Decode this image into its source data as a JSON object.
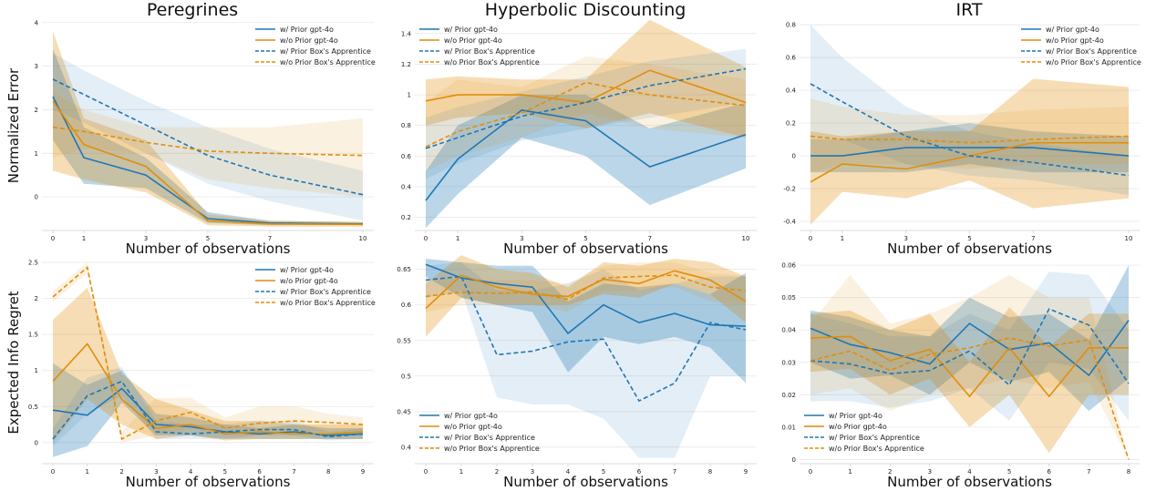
{
  "figure": {
    "column_titles": [
      "Peregrines",
      "Hyperbolic Discounting",
      "IRT"
    ],
    "row_labels": [
      "Normalized Error",
      "Expected Info Regret"
    ],
    "x_label": "Number of observations"
  },
  "colors": {
    "blue": "#1f77b4",
    "orange": "#e08e0b"
  },
  "chart_data": [
    {
      "type": "line",
      "row": 0,
      "col": 0,
      "title": "Peregrines",
      "xlabel": "Number of observations",
      "ylabel": "Normalized Error",
      "x": [
        0,
        1,
        3,
        5,
        7,
        10
      ],
      "xticks": [
        0,
        1,
        3,
        5,
        7,
        10
      ],
      "ylim": [
        -0.75,
        4.1
      ],
      "yticks": [
        0,
        1,
        2,
        3,
        4
      ],
      "grid": true,
      "legend": "top-right",
      "series": [
        {
          "name": "w/ Prior gpt-4o",
          "color": "#1f77b4",
          "dash": false,
          "values": [
            2.3,
            0.9,
            0.5,
            -0.5,
            -0.6,
            -0.62
          ],
          "band_low": [
            1.3,
            0.3,
            0.2,
            -0.6,
            -0.65,
            -0.65
          ],
          "band_high": [
            3.4,
            1.6,
            0.9,
            -0.35,
            -0.55,
            -0.58
          ]
        },
        {
          "name": "w/o Prior gpt-4o",
          "color": "#e08e0b",
          "dash": false,
          "values": [
            2.2,
            1.2,
            0.7,
            -0.55,
            -0.62,
            -0.63
          ],
          "band_low": [
            0.6,
            0.4,
            0.1,
            -0.65,
            -0.68,
            -0.68
          ],
          "band_high": [
            3.8,
            1.8,
            1.3,
            -0.4,
            -0.55,
            -0.57
          ]
        },
        {
          "name": "w/ Prior Box's Apprentice",
          "color": "#1f77b4",
          "dash": true,
          "values": [
            2.7,
            2.35,
            1.65,
            0.95,
            0.5,
            0.05
          ],
          "band_low": [
            2.0,
            1.7,
            1.0,
            0.3,
            -0.1,
            -0.55
          ],
          "band_high": [
            3.3,
            2.9,
            2.2,
            1.6,
            1.1,
            0.6
          ]
        },
        {
          "name": "w/o Prior Box's Apprentice",
          "color": "#e08e0b",
          "dash": true,
          "values": [
            1.6,
            1.5,
            1.25,
            1.05,
            1.0,
            0.95
          ],
          "band_low": [
            0.9,
            1.1,
            1.0,
            0.4,
            0.2,
            0.0
          ],
          "band_high": [
            2.4,
            2.0,
            1.6,
            1.6,
            1.6,
            1.8
          ]
        }
      ]
    },
    {
      "type": "line",
      "row": 0,
      "col": 1,
      "title": "Hyperbolic Discounting",
      "xlabel": "Number of observations",
      "ylabel": "",
      "x": [
        0,
        1,
        3,
        5,
        7,
        10
      ],
      "xticks": [
        0,
        1,
        3,
        5,
        7,
        10
      ],
      "ylim": [
        0.12,
        1.5
      ],
      "yticks": [
        0.2,
        0.4,
        0.6,
        0.8,
        1.0,
        1.2,
        1.4
      ],
      "grid": true,
      "legend": "top-left",
      "series": [
        {
          "name": "w/ Prior gpt-4o",
          "color": "#1f77b4",
          "dash": false,
          "values": [
            0.31,
            0.58,
            0.9,
            0.83,
            0.53,
            0.74
          ],
          "band_low": [
            0.13,
            0.35,
            0.72,
            0.6,
            0.28,
            0.52
          ],
          "band_high": [
            0.5,
            0.8,
            1.0,
            1.0,
            0.78,
            0.95
          ]
        },
        {
          "name": "w/o Prior gpt-4o",
          "color": "#e08e0b",
          "dash": false,
          "values": [
            0.96,
            1.0,
            1.0,
            0.95,
            1.16,
            0.95
          ],
          "band_low": [
            0.8,
            0.85,
            0.88,
            0.78,
            0.88,
            0.72
          ],
          "band_high": [
            1.1,
            1.12,
            1.1,
            1.1,
            1.49,
            1.18
          ]
        },
        {
          "name": "w/ Prior Box's Apprentice",
          "color": "#1f77b4",
          "dash": true,
          "values": [
            0.65,
            0.72,
            0.86,
            0.95,
            1.06,
            1.17
          ],
          "band_low": [
            0.45,
            0.55,
            0.7,
            0.78,
            0.85,
            0.95
          ],
          "band_high": [
            0.85,
            0.92,
            1.02,
            1.12,
            1.22,
            1.3
          ]
        },
        {
          "name": "w/o Prior Box's Apprentice",
          "color": "#e08e0b",
          "dash": true,
          "values": [
            0.66,
            0.76,
            0.88,
            1.08,
            1.0,
            0.93
          ],
          "band_low": [
            0.5,
            0.6,
            0.72,
            0.88,
            0.78,
            0.72
          ],
          "band_high": [
            0.95,
            1.1,
            1.05,
            1.25,
            1.2,
            1.1
          ]
        }
      ]
    },
    {
      "type": "line",
      "row": 0,
      "col": 2,
      "title": "IRT",
      "xlabel": "Number of observations",
      "ylabel": "",
      "x": [
        0,
        1,
        3,
        5,
        7,
        10
      ],
      "xticks": [
        0,
        1,
        3,
        5,
        7,
        10
      ],
      "ylim": [
        -0.45,
        0.84
      ],
      "yticks": [
        -0.4,
        -0.2,
        0.0,
        0.2,
        0.4,
        0.6,
        0.8
      ],
      "grid": true,
      "legend": "top-right",
      "series": [
        {
          "name": "w/ Prior gpt-4o",
          "color": "#1f77b4",
          "dash": false,
          "values": [
            0.0,
            0.0,
            0.05,
            0.05,
            0.05,
            0.0
          ],
          "band_low": [
            -0.1,
            -0.1,
            -0.1,
            -0.05,
            -0.1,
            -0.1
          ],
          "band_high": [
            0.1,
            0.1,
            0.15,
            0.2,
            0.15,
            0.12
          ]
        },
        {
          "name": "w/o Prior gpt-4o",
          "color": "#e08e0b",
          "dash": false,
          "values": [
            -0.16,
            -0.05,
            -0.08,
            0.0,
            0.08,
            0.08
          ],
          "band_low": [
            -0.42,
            -0.22,
            -0.26,
            -0.15,
            -0.32,
            -0.26
          ],
          "band_high": [
            0.15,
            0.12,
            0.15,
            0.15,
            0.47,
            0.42
          ]
        },
        {
          "name": "w/ Prior Box's Apprentice",
          "color": "#1f77b4",
          "dash": true,
          "values": [
            0.44,
            0.33,
            0.12,
            0.0,
            -0.04,
            -0.12
          ],
          "band_low": [
            0.1,
            0.1,
            -0.05,
            -0.12,
            -0.15,
            -0.24
          ],
          "band_high": [
            0.8,
            0.6,
            0.3,
            0.15,
            0.08,
            0.0
          ]
        },
        {
          "name": "w/o Prior Box's Apprentice",
          "color": "#e08e0b",
          "dash": true,
          "values": [
            0.12,
            0.1,
            0.1,
            0.08,
            0.1,
            0.12
          ],
          "band_low": [
            -0.1,
            -0.05,
            -0.05,
            -0.08,
            -0.05,
            -0.05
          ],
          "band_high": [
            0.35,
            0.3,
            0.25,
            0.25,
            0.28,
            0.3
          ]
        }
      ]
    },
    {
      "type": "line",
      "row": 1,
      "col": 0,
      "title": "",
      "xlabel": "Number of observations",
      "ylabel": "Expected Info Regret",
      "x": [
        0,
        1,
        2,
        3,
        4,
        5,
        6,
        7,
        8,
        9
      ],
      "xticks": [
        0,
        1,
        2,
        3,
        4,
        5,
        6,
        7,
        8,
        9
      ],
      "ylim": [
        -0.28,
        2.55
      ],
      "yticks": [
        0.0,
        0.5,
        1.0,
        1.5,
        2.0,
        2.5
      ],
      "grid": true,
      "legend": "top-right",
      "series": [
        {
          "name": "w/ Prior gpt-4o",
          "color": "#1f77b4",
          "dash": false,
          "values": [
            0.45,
            0.38,
            0.75,
            0.25,
            0.22,
            0.15,
            0.12,
            0.15,
            0.1,
            0.12
          ],
          "band_low": [
            -0.2,
            -0.05,
            0.55,
            0.1,
            0.1,
            0.05,
            0.05,
            0.05,
            0.05,
            0.05
          ],
          "band_high": [
            1.1,
            0.8,
            1.0,
            0.4,
            0.35,
            0.25,
            0.2,
            0.25,
            0.2,
            0.2
          ]
        },
        {
          "name": "w/o Prior gpt-4o",
          "color": "#e08e0b",
          "dash": false,
          "values": [
            0.85,
            1.37,
            0.6,
            0.2,
            0.25,
            0.12,
            0.15,
            0.12,
            0.12,
            0.15
          ],
          "band_low": [
            0.0,
            0.6,
            0.25,
            0.05,
            0.1,
            0.03,
            0.05,
            0.05,
            0.05,
            0.05
          ],
          "band_high": [
            1.7,
            2.15,
            0.95,
            0.6,
            0.45,
            0.3,
            0.3,
            0.25,
            0.25,
            0.25
          ]
        },
        {
          "name": "w/ Prior Box's Apprentice",
          "color": "#1f77b4",
          "dash": true,
          "values": [
            0.05,
            0.65,
            0.85,
            0.15,
            0.12,
            0.15,
            0.18,
            0.18,
            0.08,
            0.12
          ],
          "band_low": [
            -0.05,
            0.4,
            0.65,
            0.05,
            0.05,
            0.05,
            0.1,
            0.1,
            0.03,
            0.05
          ],
          "band_high": [
            0.2,
            0.9,
            1.05,
            0.3,
            0.25,
            0.25,
            0.3,
            0.3,
            0.15,
            0.2
          ]
        },
        {
          "name": "w/o Prior Box's Apprentice",
          "color": "#e08e0b",
          "dash": true,
          "values": [
            2.02,
            2.43,
            0.05,
            0.3,
            0.42,
            0.2,
            0.27,
            0.3,
            0.28,
            0.25
          ],
          "band_low": [
            1.95,
            2.35,
            0.0,
            0.1,
            0.2,
            0.1,
            0.1,
            0.15,
            0.15,
            0.15
          ],
          "band_high": [
            2.1,
            2.5,
            0.15,
            0.62,
            0.62,
            0.35,
            0.5,
            0.5,
            0.4,
            0.35
          ]
        }
      ]
    },
    {
      "type": "line",
      "row": 1,
      "col": 1,
      "title": "",
      "xlabel": "Number of observations",
      "ylabel": "",
      "x": [
        0,
        1,
        2,
        3,
        4,
        5,
        6,
        7,
        8,
        9
      ],
      "xticks": [
        0,
        1,
        2,
        3,
        4,
        5,
        6,
        7,
        8,
        9
      ],
      "ylim": [
        0.378,
        0.665
      ],
      "yticks": [
        0.4,
        0.45,
        0.5,
        0.55,
        0.6,
        0.65
      ],
      "grid": true,
      "legend": "bottom-left",
      "series": [
        {
          "name": "w/ Prior gpt-4o",
          "color": "#1f77b4",
          "dash": false,
          "values": [
            0.657,
            0.638,
            0.63,
            0.625,
            0.56,
            0.6,
            0.575,
            0.588,
            0.572,
            0.57
          ],
          "band_low": [
            0.64,
            0.61,
            0.6,
            0.59,
            0.505,
            0.555,
            0.545,
            0.555,
            0.54,
            0.49
          ],
          "band_high": [
            0.665,
            0.66,
            0.655,
            0.655,
            0.605,
            0.63,
            0.625,
            0.63,
            0.615,
            0.645
          ]
        },
        {
          "name": "w/o Prior gpt-4o",
          "color": "#e08e0b",
          "dash": false,
          "values": [
            0.595,
            0.642,
            0.625,
            0.615,
            0.612,
            0.636,
            0.63,
            0.648,
            0.635,
            0.605
          ],
          "band_low": [
            0.555,
            0.61,
            0.6,
            0.6,
            0.6,
            0.615,
            0.61,
            0.63,
            0.615,
            0.575
          ],
          "band_high": [
            0.63,
            0.67,
            0.65,
            0.645,
            0.625,
            0.66,
            0.655,
            0.665,
            0.66,
            0.64
          ]
        },
        {
          "name": "w/ Prior Box's Apprentice",
          "color": "#1f77b4",
          "dash": true,
          "values": [
            0.635,
            0.64,
            0.53,
            0.535,
            0.548,
            0.552,
            0.465,
            0.49,
            0.575,
            0.565
          ],
          "band_low": [
            0.61,
            0.62,
            0.47,
            0.46,
            0.46,
            0.44,
            0.385,
            0.385,
            0.5,
            0.5
          ],
          "band_high": [
            0.655,
            0.66,
            0.62,
            0.62,
            0.63,
            0.65,
            0.62,
            0.63,
            0.64,
            0.64
          ]
        },
        {
          "name": "w/o Prior Box's Apprentice",
          "color": "#e08e0b",
          "dash": true,
          "values": [
            0.612,
            0.618,
            0.616,
            0.618,
            0.608,
            0.638,
            0.64,
            0.642,
            0.625,
            0.62
          ],
          "band_low": [
            0.59,
            0.6,
            0.6,
            0.6,
            0.59,
            0.62,
            0.62,
            0.625,
            0.605,
            0.6
          ],
          "band_high": [
            0.635,
            0.638,
            0.635,
            0.635,
            0.63,
            0.655,
            0.66,
            0.66,
            0.645,
            0.64
          ]
        }
      ]
    },
    {
      "type": "line",
      "row": 1,
      "col": 2,
      "title": "",
      "xlabel": "Number of observations",
      "ylabel": "",
      "x": [
        0,
        1,
        2,
        3,
        4,
        5,
        6,
        7,
        8
      ],
      "xticks": [
        0,
        1,
        2,
        3,
        4,
        5,
        6,
        7,
        8
      ],
      "ylim": [
        -0.001,
        0.062
      ],
      "yticks": [
        0.0,
        0.01,
        0.02,
        0.03,
        0.04,
        0.05,
        0.06
      ],
      "grid": true,
      "legend": "bottom-left",
      "series": [
        {
          "name": "w/ Prior gpt-4o",
          "color": "#1f77b4",
          "dash": false,
          "values": [
            0.0405,
            0.0355,
            0.033,
            0.0295,
            0.042,
            0.034,
            0.036,
            0.026,
            0.043
          ],
          "band_low": [
            0.03,
            0.025,
            0.026,
            0.02,
            0.03,
            0.024,
            0.027,
            0.015,
            0.025
          ],
          "band_high": [
            0.046,
            0.044,
            0.04,
            0.038,
            0.05,
            0.044,
            0.045,
            0.037,
            0.06
          ]
        },
        {
          "name": "w/o Prior gpt-4o",
          "color": "#e08e0b",
          "dash": false,
          "values": [
            0.0375,
            0.038,
            0.0305,
            0.034,
            0.0195,
            0.0345,
            0.0195,
            0.0345,
            0.0345
          ],
          "band_low": [
            0.027,
            0.028,
            0.02,
            0.025,
            0.01,
            0.02,
            0.002,
            0.02,
            0.02
          ],
          "band_high": [
            0.045,
            0.046,
            0.04,
            0.045,
            0.03,
            0.047,
            0.035,
            0.045,
            0.045
          ]
        },
        {
          "name": "w/ Prior Box's Apprentice",
          "color": "#1f77b4",
          "dash": true,
          "values": [
            0.0305,
            0.0295,
            0.0265,
            0.0275,
            0.0335,
            0.023,
            0.0465,
            0.0415,
            0.0235
          ],
          "band_low": [
            0.018,
            0.018,
            0.016,
            0.018,
            0.022,
            0.012,
            0.03,
            0.028,
            0.012
          ],
          "band_high": [
            0.045,
            0.042,
            0.038,
            0.038,
            0.045,
            0.04,
            0.058,
            0.057,
            0.04
          ]
        },
        {
          "name": "w/o Prior Box's Apprentice",
          "color": "#e08e0b",
          "dash": true,
          "values": [
            0.0305,
            0.0335,
            0.0275,
            0.0325,
            0.0345,
            0.0375,
            0.035,
            0.037,
            0.0
          ],
          "band_low": [
            0.02,
            0.022,
            0.015,
            0.02,
            0.022,
            0.025,
            0.022,
            0.024,
            0.0
          ],
          "band_high": [
            0.042,
            0.057,
            0.042,
            0.045,
            0.05,
            0.057,
            0.05,
            0.05,
            0.0
          ]
        }
      ]
    }
  ]
}
